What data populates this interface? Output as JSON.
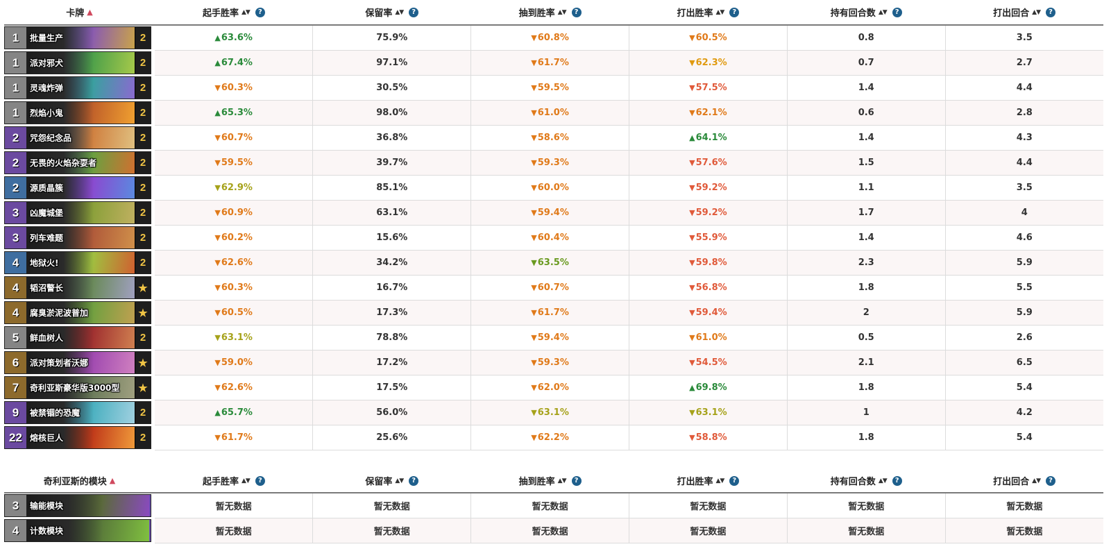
{
  "table1": {
    "headers": [
      "卡牌",
      "起手胜率",
      "保留率",
      "抽到胜率",
      "打出胜率",
      "持有回合数",
      "打出回合"
    ],
    "help_glyph": "?",
    "rows": [
      {
        "cost": "1",
        "rarity": "common",
        "name": "批量生产",
        "count": "2",
        "art": [
          "#3b6ea3",
          "#8a5bb0",
          "#c9a34a"
        ],
        "vals": [
          [
            "up",
            "63.6%"
          ],
          [
            "",
            "75.9%"
          ],
          [
            "down-orange",
            "60.8%"
          ],
          [
            "down-orange",
            "60.5%"
          ],
          [
            "",
            "0.8"
          ],
          [
            "",
            "3.5"
          ]
        ]
      },
      {
        "cost": "1",
        "rarity": "common",
        "name": "派对邪犬",
        "count": "2",
        "art": [
          "#2d4f8a",
          "#4da04a",
          "#a6c94a"
        ],
        "vals": [
          [
            "up",
            "67.4%"
          ],
          [
            "",
            "97.1%"
          ],
          [
            "down-orange",
            "61.7%"
          ],
          [
            "down-amber",
            "62.3%"
          ],
          [
            "",
            "0.7"
          ],
          [
            "",
            "2.7"
          ]
        ]
      },
      {
        "cost": "1",
        "rarity": "common",
        "name": "灵魂炸弹",
        "count": "2",
        "art": [
          "#5a3a8a",
          "#3aa0a0",
          "#8a6ad0"
        ],
        "vals": [
          [
            "down-orange",
            "60.3%"
          ],
          [
            "",
            "30.5%"
          ],
          [
            "down-orange",
            "59.5%"
          ],
          [
            "down-red",
            "57.5%"
          ],
          [
            "",
            "1.4"
          ],
          [
            "",
            "4.4"
          ]
        ]
      },
      {
        "cost": "1",
        "rarity": "common",
        "name": "烈焰小鬼",
        "count": "2",
        "art": [
          "#5a2a1a",
          "#c0602a",
          "#f0a030"
        ],
        "vals": [
          [
            "up",
            "65.3%"
          ],
          [
            "",
            "98.0%"
          ],
          [
            "down-orange",
            "61.0%"
          ],
          [
            "down-orange",
            "62.1%"
          ],
          [
            "",
            "0.6"
          ],
          [
            "",
            "2.8"
          ]
        ]
      },
      {
        "cost": "2",
        "rarity": "epic",
        "name": "咒怨纪念品",
        "count": "2",
        "art": [
          "#2a6aa0",
          "#d08040",
          "#e0c080"
        ],
        "vals": [
          [
            "down-orange",
            "60.7%"
          ],
          [
            "",
            "36.8%"
          ],
          [
            "down-orange",
            "58.6%"
          ],
          [
            "up",
            "64.1%"
          ],
          [
            "",
            "1.4"
          ],
          [
            "",
            "4.3"
          ]
        ]
      },
      {
        "cost": "2",
        "rarity": "epic",
        "name": "无畏的火焰杂耍者",
        "count": "2",
        "art": [
          "#3a5a9a",
          "#6aa040",
          "#d07030"
        ],
        "vals": [
          [
            "down-orange",
            "59.5%"
          ],
          [
            "",
            "39.7%"
          ],
          [
            "down-orange",
            "59.3%"
          ],
          [
            "down-red",
            "57.6%"
          ],
          [
            "",
            "1.5"
          ],
          [
            "",
            "4.4"
          ]
        ]
      },
      {
        "cost": "2",
        "rarity": "rare",
        "name": "源质晶簇",
        "count": "2",
        "art": [
          "#3a3aa0",
          "#8a4ad0",
          "#5a8ae0"
        ],
        "vals": [
          [
            "down-olive",
            "62.9%"
          ],
          [
            "",
            "85.1%"
          ],
          [
            "down-orange",
            "60.0%"
          ],
          [
            "down-red",
            "59.2%"
          ],
          [
            "",
            "1.1"
          ],
          [
            "",
            "3.5"
          ]
        ]
      },
      {
        "cost": "3",
        "rarity": "epic",
        "name": "凶魔城堡",
        "count": "2",
        "art": [
          "#4a4a2a",
          "#8aa03a",
          "#c0b060"
        ],
        "vals": [
          [
            "down-orange",
            "60.9%"
          ],
          [
            "",
            "63.1%"
          ],
          [
            "down-orange",
            "59.4%"
          ],
          [
            "down-red",
            "59.2%"
          ],
          [
            "",
            "1.7"
          ],
          [
            "",
            "4"
          ]
        ]
      },
      {
        "cost": "3",
        "rarity": "epic",
        "name": "列车难题",
        "count": "2",
        "art": [
          "#6a3a2a",
          "#b05a3a",
          "#d0904a"
        ],
        "vals": [
          [
            "down-orange",
            "60.2%"
          ],
          [
            "",
            "15.6%"
          ],
          [
            "down-orange",
            "60.4%"
          ],
          [
            "down-red",
            "55.9%"
          ],
          [
            "",
            "1.4"
          ],
          [
            "",
            "4.6"
          ]
        ]
      },
      {
        "cost": "4",
        "rarity": "rare",
        "name": "地狱火!",
        "count": "2",
        "art": [
          "#3a6a2a",
          "#a0c040",
          "#d06030"
        ],
        "vals": [
          [
            "down-orange",
            "62.6%"
          ],
          [
            "",
            "34.2%"
          ],
          [
            "down-green",
            "63.5%"
          ],
          [
            "down-red",
            "59.8%"
          ],
          [
            "",
            "2.3"
          ],
          [
            "",
            "5.9"
          ]
        ]
      },
      {
        "cost": "4",
        "rarity": "legend",
        "name": "韬沼警长",
        "count": "★",
        "art": [
          "#3a4a5a",
          "#6a8a5a",
          "#a0a0c0"
        ],
        "vals": [
          [
            "down-orange",
            "60.3%"
          ],
          [
            "",
            "16.7%"
          ],
          [
            "down-orange",
            "60.7%"
          ],
          [
            "down-red",
            "56.8%"
          ],
          [
            "",
            "1.8"
          ],
          [
            "",
            "5.5"
          ]
        ]
      },
      {
        "cost": "4",
        "rarity": "legend",
        "name": "腐臭淤泥波普加",
        "count": "★",
        "art": [
          "#3a5a2a",
          "#70a040",
          "#c0a050"
        ],
        "vals": [
          [
            "down-orange",
            "60.5%"
          ],
          [
            "",
            "17.3%"
          ],
          [
            "down-orange",
            "61.7%"
          ],
          [
            "down-red",
            "59.4%"
          ],
          [
            "",
            "2"
          ],
          [
            "",
            "5.9"
          ]
        ]
      },
      {
        "cost": "5",
        "rarity": "common",
        "name": "鲜血树人",
        "count": "2",
        "art": [
          "#5a1a1a",
          "#a03030",
          "#d08050"
        ],
        "vals": [
          [
            "down-olive",
            "63.1%"
          ],
          [
            "",
            "78.8%"
          ],
          [
            "down-orange",
            "59.4%"
          ],
          [
            "down-orange",
            "61.0%"
          ],
          [
            "",
            "0.5"
          ],
          [
            "",
            "2.6"
          ]
        ]
      },
      {
        "cost": "6",
        "rarity": "legend",
        "name": "派对策划者沃娜",
        "count": "★",
        "art": [
          "#5a2a6a",
          "#a04ab0",
          "#d080c0"
        ],
        "vals": [
          [
            "down-orange",
            "59.0%"
          ],
          [
            "",
            "17.2%"
          ],
          [
            "down-orange",
            "59.3%"
          ],
          [
            "down-red",
            "54.5%"
          ],
          [
            "",
            "2.1"
          ],
          [
            "",
            "6.5"
          ]
        ]
      },
      {
        "cost": "7",
        "rarity": "legend",
        "name": "奇利亚斯豪华版3000型",
        "count": "★",
        "art": [
          "#3a4a3a",
          "#6a7a5a",
          "#a0a080"
        ],
        "vals": [
          [
            "down-orange",
            "62.6%"
          ],
          [
            "",
            "17.5%"
          ],
          [
            "down-orange",
            "62.0%"
          ],
          [
            "up",
            "69.8%"
          ],
          [
            "",
            "1.8"
          ],
          [
            "",
            "5.4"
          ]
        ]
      },
      {
        "cost": "9",
        "rarity": "epic",
        "name": "被禁锢的恐魔",
        "count": "2",
        "art": [
          "#2a5a8a",
          "#4ab0c0",
          "#a0d0e0"
        ],
        "vals": [
          [
            "up",
            "65.7%"
          ],
          [
            "",
            "56.0%"
          ],
          [
            "down-olive",
            "63.1%"
          ],
          [
            "down-olive",
            "63.1%"
          ],
          [
            "",
            "1"
          ],
          [
            "",
            "4.2"
          ]
        ]
      },
      {
        "cost": "22",
        "rarity": "epic",
        "name": "熔核巨人",
        "count": "2",
        "art": [
          "#5a1a0a",
          "#c03a1a",
          "#f09a3a"
        ],
        "vals": [
          [
            "down-orange",
            "61.7%"
          ],
          [
            "",
            "25.6%"
          ],
          [
            "down-orange",
            "62.2%"
          ],
          [
            "down-red",
            "58.8%"
          ],
          [
            "",
            "1.8"
          ],
          [
            "",
            "5.4"
          ]
        ]
      }
    ]
  },
  "table2": {
    "headers": [
      "奇利亚斯的模块",
      "起手胜率",
      "保留率",
      "抽到胜率",
      "打出胜率",
      "持有回合数",
      "打出回合"
    ],
    "rows": [
      {
        "cost": "3",
        "rarity": "common",
        "name": "输能模块",
        "art": [
          "#2a3a2a",
          "#5a6a3a",
          "#8a4ac0"
        ],
        "vals": [
          "暂无数据",
          "暂无数据",
          "暂无数据",
          "暂无数据",
          "暂无数据",
          "暂无数据"
        ]
      },
      {
        "cost": "4",
        "rarity": "common",
        "name": "计数模块",
        "art": [
          "#2a3a2a",
          "#5a7a3a",
          "#80c040"
        ],
        "vals": [
          "暂无数据",
          "暂无数据",
          "暂无数据",
          "暂无数据",
          "暂无数据",
          "暂无数据"
        ]
      }
    ]
  },
  "colors": {
    "up": "#2a8a3a",
    "down": "#e07a1a",
    "accent": "#d0495e",
    "help": "#1e5f8c"
  }
}
